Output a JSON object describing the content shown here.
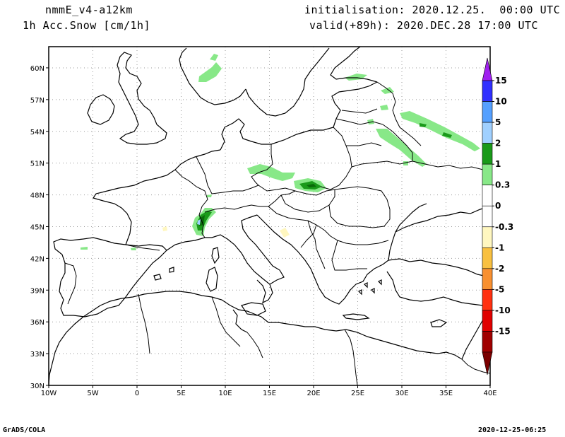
{
  "header": {
    "model": "nmmE_v4-a12km",
    "field": "1h Acc.Snow [cm/1h]",
    "init": "initialisation: 2020.12.25.  00:00 UTC",
    "valid": "valid(+89h): 2020.DEC.28 17:00 UTC"
  },
  "footer": {
    "left": "GrADS/COLA",
    "right": "2020-12-25-06:25"
  },
  "map": {
    "lon_labels": [
      "10W",
      "5W",
      "0",
      "5E",
      "10E",
      "15E",
      "20E",
      "25E",
      "30E",
      "35E",
      "40E"
    ],
    "lat_labels": [
      "30N",
      "33N",
      "36N",
      "39N",
      "42N",
      "45N",
      "48N",
      "51N",
      "54N",
      "57N",
      "60N"
    ],
    "lon_values": [
      -10,
      -5,
      0,
      5,
      10,
      15,
      20,
      25,
      30,
      35,
      40
    ],
    "lat_values": [
      30,
      33,
      36,
      39,
      42,
      45,
      48,
      51,
      54,
      57,
      60
    ],
    "lon_range": [
      -10,
      40
    ],
    "lat_range": [
      30,
      62
    ],
    "grid": "dotted"
  },
  "colorbar": {
    "labels": [
      "15",
      "10",
      "5",
      "2",
      "1",
      "0.3",
      "0",
      "-0.3",
      "-1",
      "-2",
      "-5",
      "-10",
      "-15"
    ],
    "colors": [
      "#a020f0",
      "#3030ff",
      "#55a0ff",
      "#a0d0ff",
      "#1a9a1a",
      "#88e888",
      "#ffffff",
      "#ffffff",
      "#fff7c0",
      "#f8c040",
      "#f89030",
      "#ff3010",
      "#e00000",
      "#a00000",
      "#7a0000"
    ]
  },
  "snow_colors": {
    "light": "#88e888",
    "medium": "#1a9a1a",
    "heavy": "#0a6a0a",
    "neg": "#fff7c0"
  }
}
